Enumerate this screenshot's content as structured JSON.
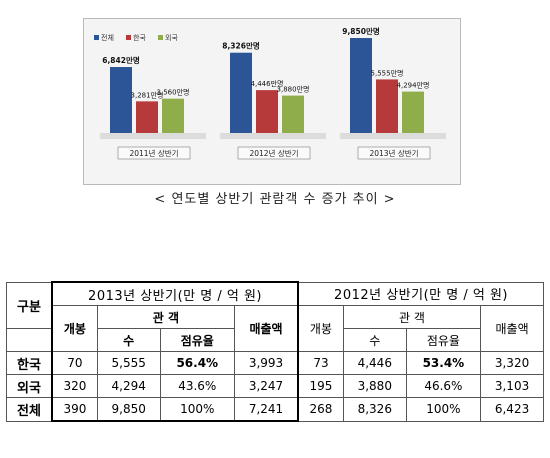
{
  "chart_data": {
    "type": "bar",
    "categories": [
      "2011년 상반기",
      "2012년 상반기",
      "2013년 상반기"
    ],
    "series": [
      {
        "name": "전체",
        "color": "#2b5597",
        "values": [
          6842,
          8326,
          9850
        ],
        "labels": [
          "6,842만명",
          "8,326만명",
          "9,850만명"
        ]
      },
      {
        "name": "한국",
        "color": "#b73a3a",
        "values": [
          3281,
          4446,
          5555
        ],
        "labels": [
          "3,281만명",
          "4,446만명",
          "5,555만명"
        ]
      },
      {
        "name": "외국",
        "color": "#8fae4b",
        "values": [
          3560,
          3880,
          4294
        ],
        "labels": [
          "3,560만명",
          "3,880만명",
          "4,294만명"
        ]
      }
    ],
    "ylim": [
      0,
      10500
    ],
    "legend": "top-left"
  },
  "caption": "< 연도별 상반기 관람객 수 증가 추이 >",
  "table": {
    "corner": "구분",
    "group_2013": "2013년 상반기(만 명 / 억 원)",
    "group_2012": "2012년 상반기(만 명 / 억 원)",
    "col_open": "개봉",
    "col_audience": "관  객",
    "col_sales": "매출액",
    "col_count": "수",
    "col_share": "점유율",
    "rows": [
      {
        "label": "한국",
        "v": [
          "70",
          "5,555",
          "56.4%",
          "3,993",
          "73",
          "4,446",
          "53.4%",
          "3,320"
        ]
      },
      {
        "label": "외국",
        "v": [
          "320",
          "4,294",
          "43.6%",
          "3,247",
          "195",
          "3,880",
          "46.6%",
          "3,103"
        ]
      },
      {
        "label": "전체",
        "v": [
          "390",
          "9,850",
          "100%",
          "7,241",
          "268",
          "8,326",
          "100%",
          "6,423"
        ]
      }
    ]
  }
}
